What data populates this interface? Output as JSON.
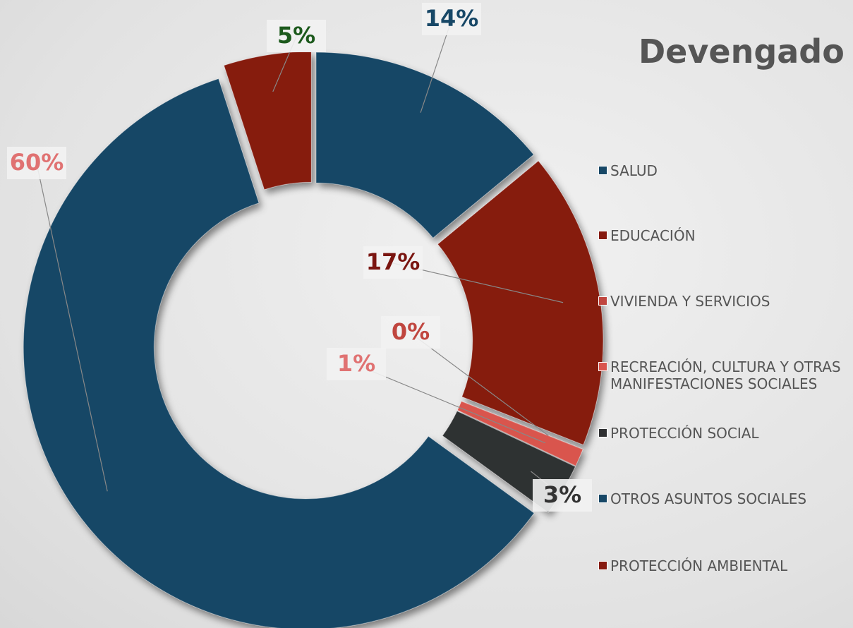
{
  "chart_data": {
    "type": "pie",
    "title": "Devengado",
    "categories": [
      "SALUD",
      "EDUCACIÓN",
      "VIVIENDA Y SERVICIOS",
      "RECREACIÓN, CULTURA Y OTRAS MANIFESTACIONES SOCIALES",
      "PROTECCIÓN SOCIAL",
      "OTROS ASUNTOS SOCIALES",
      "PROTECCIÓN AMBIENTAL"
    ],
    "values": [
      14,
      17,
      0,
      1,
      3,
      60,
      5
    ],
    "value_labels": [
      "14%",
      "17%",
      "0%",
      "1%",
      "3%",
      "60%",
      "5%"
    ],
    "colors": [
      "#174766",
      "#861a10",
      "#c0463f",
      "#d9544d",
      "#2f3032",
      "#174766",
      "#861a10"
    ],
    "label_colors": [
      "#174766",
      "#7a1510",
      "#c0463f",
      "#e07272",
      "#333333",
      "#e07272",
      "#1d5a1d"
    ],
    "donut": true,
    "legend": "right"
  }
}
